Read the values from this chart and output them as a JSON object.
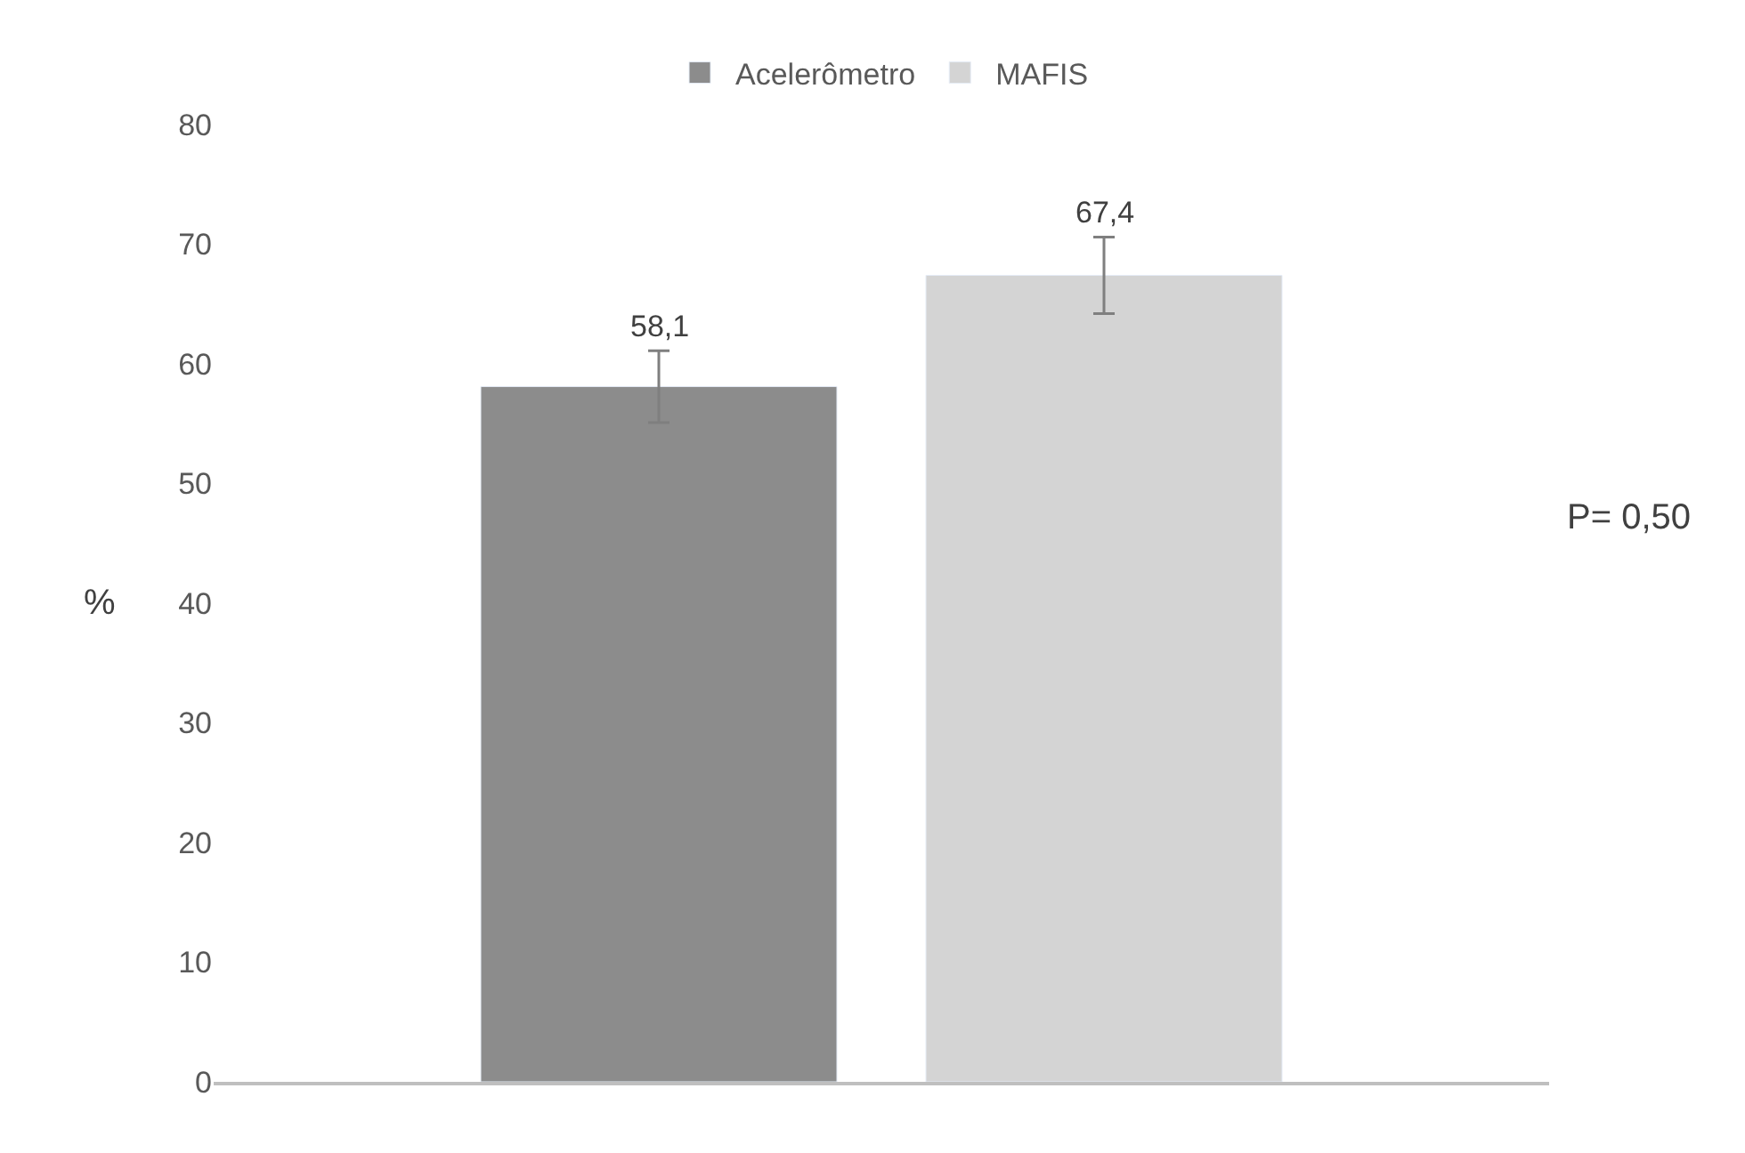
{
  "chart_data": {
    "type": "bar",
    "ylabel": "%",
    "categories": [
      null,
      null
    ],
    "series": [
      {
        "name": "Acelerômetro",
        "color": "#8c8c8c",
        "values": [
          58.1,
          null
        ],
        "errors": [
          3.0,
          null
        ],
        "value_labels": [
          "58,1",
          null
        ]
      },
      {
        "name": "MAFIS",
        "color": "#d4d4d4",
        "values": [
          null,
          67.4
        ],
        "errors": [
          null,
          3.2
        ],
        "value_labels": [
          null,
          "67,4"
        ]
      }
    ],
    "ylim": [
      0,
      80
    ],
    "yticks": [
      0,
      10,
      20,
      30,
      40,
      50,
      60,
      70,
      80
    ],
    "legend": "top",
    "annotations": [
      "P= 0,50"
    ]
  }
}
